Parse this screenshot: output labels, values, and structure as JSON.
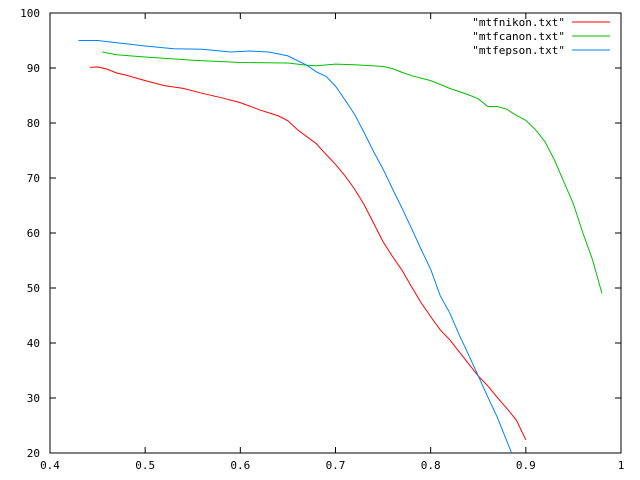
{
  "chart_data": {
    "type": "line",
    "title": "",
    "xlabel": "",
    "ylabel": "",
    "xlim": [
      0.4,
      1.0
    ],
    "ylim": [
      20,
      100
    ],
    "xticks": [
      "0.4",
      "0.5",
      "0.6",
      "0.7",
      "0.8",
      "0.9",
      "1"
    ],
    "yticks": [
      "20",
      "30",
      "40",
      "50",
      "60",
      "70",
      "80",
      "90",
      "100"
    ],
    "grid": false,
    "legend_position": "top-right",
    "series": [
      {
        "name": "\"mtfnikon.txt\"",
        "color": "#ff0000",
        "x": [
          0.442,
          0.45,
          0.46,
          0.47,
          0.48,
          0.49,
          0.5,
          0.52,
          0.54,
          0.56,
          0.58,
          0.6,
          0.62,
          0.64,
          0.65,
          0.66,
          0.67,
          0.68,
          0.69,
          0.7,
          0.71,
          0.72,
          0.73,
          0.74,
          0.75,
          0.76,
          0.77,
          0.78,
          0.79,
          0.8,
          0.81,
          0.82,
          0.83,
          0.84,
          0.85,
          0.86,
          0.87,
          0.88,
          0.89,
          0.9
        ],
        "y": [
          90.1,
          90.2,
          89.8,
          89.1,
          88.7,
          88.2,
          87.7,
          86.8,
          86.3,
          85.4,
          84.6,
          83.7,
          82.4,
          81.3,
          80.4,
          78.8,
          77.5,
          76.2,
          74.3,
          72.5,
          70.4,
          68.0,
          65.2,
          61.8,
          58.4,
          55.7,
          53.2,
          50.2,
          47.3,
          44.8,
          42.4,
          40.6,
          38.4,
          36.2,
          34.0,
          32.2,
          30.1,
          28.1,
          26.0,
          22.4
        ]
      },
      {
        "name": "\"mtfcanon.txt\"",
        "color": "#00c000",
        "x": [
          0.455,
          0.47,
          0.5,
          0.55,
          0.6,
          0.65,
          0.67,
          0.68,
          0.7,
          0.72,
          0.75,
          0.76,
          0.77,
          0.78,
          0.8,
          0.82,
          0.84,
          0.85,
          0.86,
          0.87,
          0.88,
          0.89,
          0.9,
          0.91,
          0.92,
          0.93,
          0.94,
          0.95,
          0.96,
          0.97,
          0.98
        ],
        "y": [
          92.9,
          92.4,
          92.0,
          91.4,
          91.0,
          90.9,
          90.5,
          90.4,
          90.7,
          90.6,
          90.3,
          89.9,
          89.2,
          88.6,
          87.7,
          86.3,
          85.1,
          84.4,
          83.0,
          83.0,
          82.5,
          81.4,
          80.5,
          78.8,
          76.6,
          73.3,
          69.3,
          65.3,
          60.0,
          55.2,
          49.0
        ]
      },
      {
        "name": "\"mtfepson.txt\"",
        "color": "#0080ff",
        "x": [
          0.43,
          0.45,
          0.47,
          0.5,
          0.53,
          0.56,
          0.59,
          0.61,
          0.63,
          0.65,
          0.67,
          0.68,
          0.69,
          0.7,
          0.71,
          0.72,
          0.73,
          0.74,
          0.75,
          0.76,
          0.77,
          0.78,
          0.79,
          0.8,
          0.81,
          0.82,
          0.83,
          0.84,
          0.85,
          0.86,
          0.87,
          0.88,
          0.885
        ],
        "y": [
          95.0,
          95.0,
          94.6,
          94.0,
          93.5,
          93.4,
          92.9,
          93.1,
          92.9,
          92.2,
          90.5,
          89.3,
          88.5,
          86.7,
          84.2,
          81.6,
          78.3,
          74.8,
          71.6,
          68.0,
          64.5,
          60.8,
          57.0,
          53.4,
          48.6,
          45.5,
          41.5,
          37.8,
          34.0,
          30.2,
          26.5,
          22.2,
          20.0
        ]
      }
    ]
  }
}
